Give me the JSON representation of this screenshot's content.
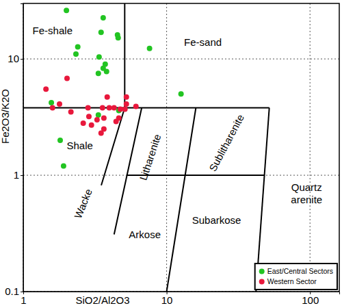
{
  "chart_data": {
    "type": "scatter",
    "x_label": "SiO2/Al2O3",
    "y_label": "Fe2O3/K2O",
    "log": true,
    "grid": true,
    "legend": "lower right",
    "xlim": [
      1,
      160
    ],
    "ylim": [
      0.1,
      30
    ],
    "xticks": [
      1,
      10,
      100
    ],
    "yticks": [
      0.1,
      1,
      10
    ],
    "series": [
      {
        "name": "East/Central Sectors",
        "color": "#22c422",
        "marker": "circle",
        "x": [
          2.0,
          3.61,
          3.49,
          4.54,
          4.59,
          2.4,
          2.33,
          3.38,
          3.73,
          3.61,
          3.81,
          7.6,
          3.34,
          12.6,
          1.57,
          4.64,
          3.34,
          1.81,
          1.91
        ],
        "values": [
          26.1,
          22.6,
          16.9,
          16.1,
          15.2,
          12.7,
          11.0,
          10.4,
          9.0,
          8.3,
          7.8,
          12.3,
          7.5,
          5.0,
          4.2,
          3.6,
          3.3,
          2.0,
          1.2
        ]
      },
      {
        "name": "Western Sector",
        "color": "#e8183c",
        "marker": "circle",
        "x": [
          2.02,
          1.44,
          3.85,
          5.24,
          5.24,
          1.79,
          1.6,
          2.83,
          3.57,
          3.98,
          4.3,
          6.11,
          5.12,
          2.15,
          2.87,
          3.27,
          3.65,
          4.64,
          4.44,
          2.62,
          2.99,
          3.65,
          3.49,
          4.75
        ],
        "values": [
          6.8,
          5.5,
          4.7,
          4.7,
          4.1,
          4.1,
          3.8,
          3.8,
          3.8,
          3.8,
          3.8,
          3.9,
          3.7,
          3.5,
          3.2,
          3.0,
          3.1,
          3.1,
          2.9,
          2.8,
          2.7,
          2.5,
          2.3,
          3.7
        ]
      }
    ],
    "boundaries": [
      {
        "x": [
          1,
          52
        ],
        "y": [
          3.8,
          3.8
        ]
      },
      {
        "x": [
          5.1,
          5.1
        ],
        "y": [
          3.8,
          30
        ]
      },
      {
        "x": [
          52,
          42
        ],
        "y": [
          3.8,
          0.1
        ]
      },
      {
        "x": [
          5.1,
          3.5
        ],
        "y": [
          3.8,
          0.82
        ]
      },
      {
        "x": [
          6.7,
          4.3
        ],
        "y": [
          3.8,
          0.31
        ]
      },
      {
        "x": [
          16,
          10
        ],
        "y": [
          3.8,
          0.1
        ]
      },
      {
        "x": [
          5.25,
          48
        ],
        "y": [
          1,
          1
        ]
      }
    ],
    "annotations": [
      {
        "text": "Fe-shale",
        "x": 1.6,
        "y": 17.4
      },
      {
        "text": "Fe-sand",
        "x": 17.9,
        "y": 13.9
      },
      {
        "text": "Shale",
        "x": 2.48,
        "y": 1.8
      },
      {
        "text": "Wacke",
        "x": 2.62,
        "y": 0.57
      },
      {
        "text": "Litharenite",
        "x": 7.69,
        "y": 1.43
      },
      {
        "text": "Sublitharenite",
        "x": 26.2,
        "y": 1.9
      },
      {
        "text": "Arkose",
        "x": 7.04,
        "y": 0.31
      },
      {
        "text": "Subarkose",
        "x": 22.3,
        "y": 0.41
      },
      {
        "text": "Quartz arenite",
        "x": 94.7,
        "y": 0.65
      }
    ]
  }
}
